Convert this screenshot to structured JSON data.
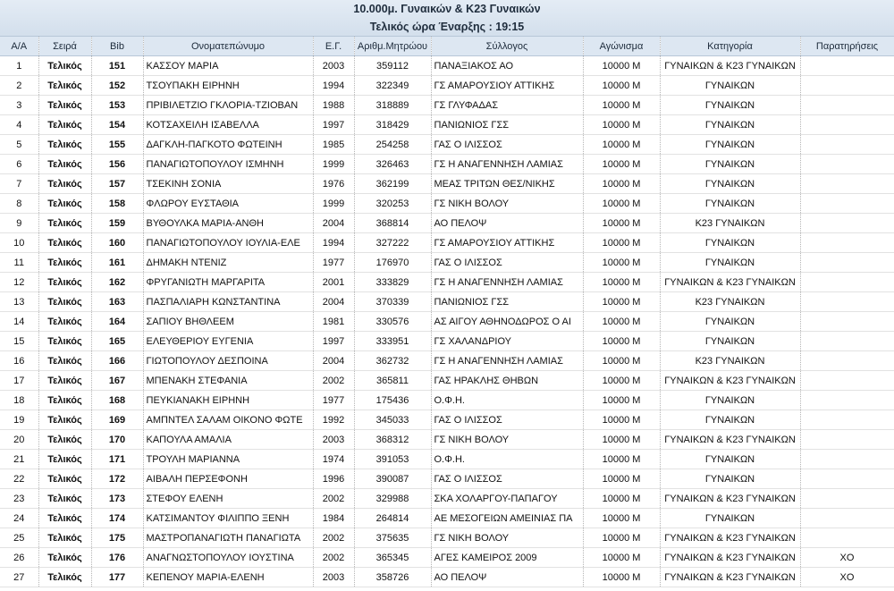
{
  "header": {
    "title": "10.000μ. Γυναικών & Κ23 Γυναικών",
    "subtitle": "Τελικός ώρα Έναρξης : 19:15"
  },
  "table": {
    "headers": [
      "Α/Α",
      "Σειρά",
      "Bib",
      "Ονοματεπώνυμο",
      "Ε.Γ.",
      "Αριθμ.Μητρώου",
      "Σύλλογος",
      "Αγώνισμα",
      "Κατηγορία",
      "Παρατηρήσεις"
    ],
    "rows": [
      [
        "1",
        "Τελικός",
        "151",
        "ΚΑΣΣΟΥ ΜΑΡΙΑ",
        "2003",
        "359112",
        "ΠΑΝΑΞΙΑΚΟΣ ΑΟ",
        "10000 M",
        "ΓΥΝΑΙΚΩΝ &  Κ23 ΓΥΝΑΙΚΩΝ"
      ],
      [
        "2",
        "Τελικός",
        "152",
        "ΤΣΟΥΠΑΚΗ ΕΙΡΗΝΗ",
        "1994",
        "322349",
        "ΓΣ ΑΜΑΡΟΥΣΙΟΥ ΑΤΤΙΚΗΣ",
        "10000 M",
        "ΓΥΝΑΙΚΩΝ"
      ],
      [
        "3",
        "Τελικός",
        "153",
        "ΠΡΙΒΙΛΕΤΖΙΟ ΓΚΛΟΡΙΑ-ΤΖΙΟΒΑΝ",
        "1988",
        "318889",
        "ΓΣ ΓΛΥΦΑΔΑΣ",
        "10000 M",
        "ΓΥΝΑΙΚΩΝ"
      ],
      [
        "4",
        "Τελικός",
        "154",
        "ΚΟΤΣΑΧΕΙΛΗ ΙΣΑΒΕΛΛΑ",
        "1997",
        "318429",
        "ΠΑΝΙΩΝΙΟΣ ΓΣΣ",
        "10000 M",
        "ΓΥΝΑΙΚΩΝ"
      ],
      [
        "5",
        "Τελικός",
        "155",
        "ΔΑΓΚΛΗ-ΠΑΓΚΟΤΟ ΦΩΤΕΙΝΗ",
        "1985",
        "254258",
        "ΓΑΣ Ο ΙΛΙΣΣΟΣ",
        "10000 M",
        "ΓΥΝΑΙΚΩΝ"
      ],
      [
        "6",
        "Τελικός",
        "156",
        "ΠΑΝΑΓΙΩΤΟΠΟΥΛΟΥ ΙΣΜΗΝΗ",
        "1999",
        "326463",
        "ΓΣ Η ΑΝΑΓΕΝΝΗΣΗ ΛΑΜΙΑΣ",
        "10000 M",
        "ΓΥΝΑΙΚΩΝ"
      ],
      [
        "7",
        "Τελικός",
        "157",
        "ΤΣΕΚΙΝΗ ΣΟΝΙΑ",
        "1976",
        "362199",
        "ΜΕΑΣ ΤΡΙΤΩΝ ΘΕΣ/ΝΙΚΗΣ",
        "10000 M",
        "ΓΥΝΑΙΚΩΝ"
      ],
      [
        "8",
        "Τελικός",
        "158",
        "ΦΛΩΡΟΥ ΕΥΣΤΑΘΙΑ",
        "1999",
        "320253",
        "ΓΣ ΝΙΚΗ ΒΟΛΟΥ",
        "10000 M",
        "ΓΥΝΑΙΚΩΝ"
      ],
      [
        "9",
        "Τελικός",
        "159",
        "ΒΥΘΟΥΛΚΑ ΜΑΡΙΑ-ΑΝΘΗ",
        "2004",
        "368814",
        "ΑΟ ΠΕΛΟΨ",
        "10000 M",
        "Κ23 ΓΥΝΑΙΚΩΝ"
      ],
      [
        "10",
        "Τελικός",
        "160",
        "ΠΑΝΑΓΙΩΤΟΠΟΥΛΟΥ ΙΟΥΛΙΑ-ΕΛΕ",
        "1994",
        "327222",
        "ΓΣ ΑΜΑΡΟΥΣΙΟΥ ΑΤΤΙΚΗΣ",
        "10000 M",
        "ΓΥΝΑΙΚΩΝ"
      ],
      [
        "11",
        "Τελικός",
        "161",
        "ΔΗΜΑΚΗ ΝΤΕΝΙΖ",
        "1977",
        "176970",
        "ΓΑΣ Ο ΙΛΙΣΣΟΣ",
        "10000 M",
        "ΓΥΝΑΙΚΩΝ"
      ],
      [
        "12",
        "Τελικός",
        "162",
        "ΦΡΥΓΑΝΙΩΤΗ ΜΑΡΓΑΡΙΤΑ",
        "2001",
        "333829",
        "ΓΣ Η ΑΝΑΓΕΝΝΗΣΗ ΛΑΜΙΑΣ",
        "10000 M",
        "ΓΥΝΑΙΚΩΝ &  Κ23 ΓΥΝΑΙΚΩΝ"
      ],
      [
        "13",
        "Τελικός",
        "163",
        "ΠΑΣΠΑΛΙΑΡΗ ΚΩΝΣΤΑΝΤΙΝΑ",
        "2004",
        "370339",
        "ΠΑΝΙΩΝΙΟΣ ΓΣΣ",
        "10000 M",
        "Κ23 ΓΥΝΑΙΚΩΝ"
      ],
      [
        "14",
        "Τελικός",
        "164",
        "ΣΑΠΙΟΥ ΒΗΘΛΕΕΜ",
        "1981",
        "330576",
        "ΑΣ ΑΙΓΟΥ ΑΘΗΝΟΔΩΡΟΣ Ο ΑΙ",
        "10000 M",
        "ΓΥΝΑΙΚΩΝ"
      ],
      [
        "15",
        "Τελικός",
        "165",
        "ΕΛΕΥΘΕΡΙΟΥ ΕΥΓΕΝΙΑ",
        "1997",
        "333951",
        "ΓΣ ΧΑΛΑΝΔΡΙΟΥ",
        "10000 M",
        "ΓΥΝΑΙΚΩΝ"
      ],
      [
        "16",
        "Τελικός",
        "166",
        "ΓΙΩΤΟΠΟΥΛΟΥ ΔΕΣΠΟΙΝΑ",
        "2004",
        "362732",
        "ΓΣ Η ΑΝΑΓΕΝΝΗΣΗ ΛΑΜΙΑΣ",
        "10000 M",
        "Κ23 ΓΥΝΑΙΚΩΝ"
      ],
      [
        "17",
        "Τελικός",
        "167",
        "ΜΠΕΝΑΚΗ ΣΤΕΦΑΝΙΑ",
        "2002",
        "365811",
        "ΓΑΣ ΗΡΑΚΛΗΣ ΘΗΒΩΝ",
        "10000 M",
        "ΓΥΝΑΙΚΩΝ &  Κ23 ΓΥΝΑΙΚΩΝ"
      ],
      [
        "18",
        "Τελικός",
        "168",
        "ΠΕΥΚΙΑΝΑΚΗ ΕΙΡΗΝΗ",
        "1977",
        "175436",
        "Ο.Φ.Η.",
        "10000 M",
        "ΓΥΝΑΙΚΩΝ"
      ],
      [
        "19",
        "Τελικός",
        "169",
        "ΑΜΠΝΤΕΛ ΣΑΛΑΜ ΟΙΚΟΝΟ ΦΩΤΕ",
        "1992",
        "345033",
        "ΓΑΣ Ο ΙΛΙΣΣΟΣ",
        "10000 M",
        "ΓΥΝΑΙΚΩΝ"
      ],
      [
        "20",
        "Τελικός",
        "170",
        "ΚΑΠΟΥΛΑ ΑΜΑΛΙΑ",
        "2003",
        "368312",
        "ΓΣ ΝΙΚΗ ΒΟΛΟΥ",
        "10000 M",
        "ΓΥΝΑΙΚΩΝ &  Κ23 ΓΥΝΑΙΚΩΝ"
      ],
      [
        "21",
        "Τελικός",
        "171",
        "ΤΡΟΥΛΗ ΜΑΡΙΑΝΝΑ",
        "1974",
        "391053",
        "Ο.Φ.Η.",
        "10000 M",
        "ΓΥΝΑΙΚΩΝ"
      ],
      [
        "22",
        "Τελικός",
        "172",
        "ΑΙΒΑΛΗ ΠΕΡΣΕΦΟΝΗ",
        "1996",
        "390087",
        "ΓΑΣ Ο ΙΛΙΣΣΟΣ",
        "10000 M",
        "ΓΥΝΑΙΚΩΝ"
      ],
      [
        "23",
        "Τελικός",
        "173",
        "ΣΤΕΦΟΥ ΕΛΕΝΗ",
        "2002",
        "329988",
        "ΣΚΑ ΧΟΛΑΡΓΟΥ-ΠΑΠΑΓΟΥ",
        "10000 M",
        "ΓΥΝΑΙΚΩΝ &  Κ23 ΓΥΝΑΙΚΩΝ"
      ],
      [
        "24",
        "Τελικός",
        "174",
        "ΚΑΤΣΙΜΑΝΤΟΥ ΦΙΛΙΠΠΟ ΞΕΝΗ",
        "1984",
        "264814",
        "ΑΕ ΜΕΣΟΓΕΙΩΝ ΑΜΕΙΝΙΑΣ ΠΑ",
        "10000 M",
        "ΓΥΝΑΙΚΩΝ"
      ],
      [
        "25",
        "Τελικός",
        "175",
        "ΜΑΣΤΡΟΠΑΝΑΓΙΩΤΗ ΠΑΝΑΓΙΩΤΑ",
        "2002",
        "375635",
        "ΓΣ ΝΙΚΗ ΒΟΛΟΥ",
        "10000 M",
        "ΓΥΝΑΙΚΩΝ &  Κ23 ΓΥΝΑΙΚΩΝ"
      ],
      [
        "26",
        "Τελικός",
        "176",
        "ΑΝΑΓΝΩΣΤΟΠΟΥΛΟΥ ΙΟΥΣΤΙΝΑ",
        "2002",
        "365345",
        "ΑΓΕΣ ΚΑΜΕΙΡΟΣ 2009",
        "10000 M",
        "ΓΥΝΑΙΚΩΝ &  Κ23 ΓΥΝΑΙΚΩΝ",
        "ΧΟ"
      ],
      [
        "27",
        "Τελικός",
        "177",
        "ΚΕΠΕΝΟΥ ΜΑΡΙΑ-ΕΛΕΝΗ",
        "2003",
        "358726",
        "ΑΟ ΠΕΛΟΨ",
        "10000 M",
        "ΓΥΝΑΙΚΩΝ &  Κ23 ΓΥΝΑΙΚΩΝ",
        "ΧΟ"
      ]
    ]
  }
}
